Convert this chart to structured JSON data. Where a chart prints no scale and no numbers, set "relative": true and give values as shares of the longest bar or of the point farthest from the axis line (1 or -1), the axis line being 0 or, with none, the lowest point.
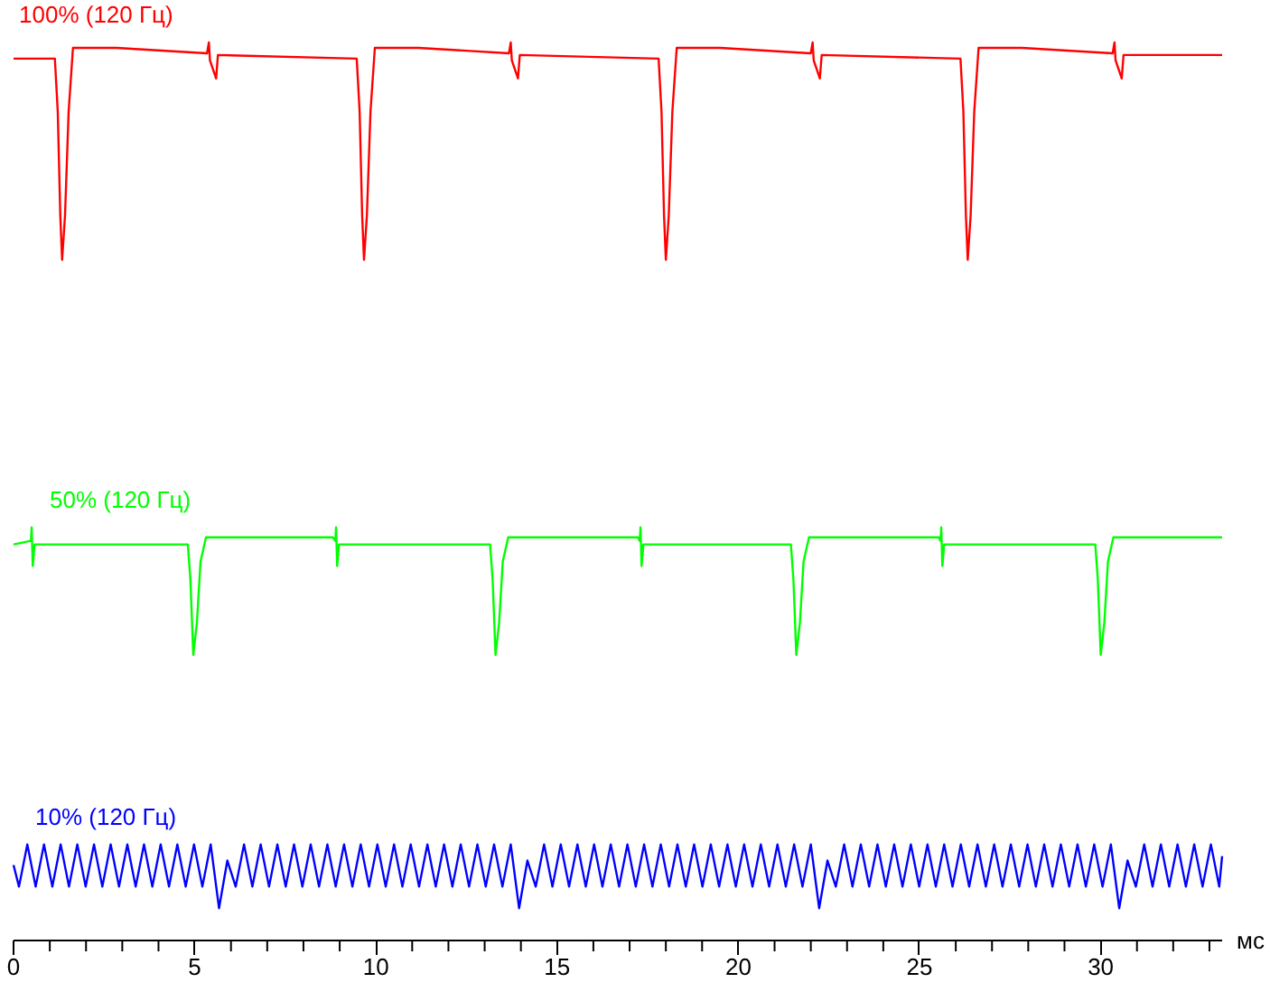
{
  "chart_data": {
    "type": "line",
    "relative": true,
    "xlabel": "мс",
    "xlim": [
      0,
      33.35
    ],
    "xticks": [
      0,
      5,
      10,
      15,
      20,
      25,
      30
    ],
    "grid": false,
    "marker": "none",
    "line_style": "solid",
    "series": [
      {
        "name": "100% (120 Гц)",
        "color": "#ff0000",
        "x": [
          0,
          1.14,
          1.22,
          1.29,
          1.34,
          1.42,
          1.52,
          1.64,
          2.84,
          5.34,
          5.39,
          5.42,
          5.59,
          5.64,
          9.47,
          9.55,
          9.62,
          9.67,
          9.75,
          9.85,
          9.97,
          11.17,
          13.67,
          13.72,
          13.75,
          13.92,
          13.97,
          17.8,
          17.88,
          17.95,
          18.0,
          18.08,
          18.18,
          18.3,
          19.5,
          22.0,
          22.05,
          22.08,
          22.25,
          22.3,
          26.13,
          26.21,
          26.28,
          26.33,
          26.41,
          26.51,
          26.63,
          27.83,
          30.33,
          30.38,
          30.41,
          30.58,
          30.63,
          33.35
        ],
        "values": [
          0.982,
          0.982,
          0.923,
          0.807,
          0.758,
          0.807,
          0.923,
          0.994,
          0.994,
          0.988,
          1.0,
          0.98,
          0.96,
          0.986,
          0.982,
          0.923,
          0.807,
          0.758,
          0.807,
          0.923,
          0.994,
          0.994,
          0.988,
          1.0,
          0.98,
          0.96,
          0.986,
          0.982,
          0.923,
          0.807,
          0.758,
          0.807,
          0.923,
          0.994,
          0.994,
          0.988,
          1.0,
          0.98,
          0.96,
          0.986,
          0.982,
          0.923,
          0.807,
          0.758,
          0.807,
          0.923,
          0.994,
          0.994,
          0.988,
          1.0,
          0.98,
          0.96,
          0.986,
          0.986
        ]
      },
      {
        "name": "50% (120 Гц)",
        "color": "#00ff00",
        "x": [
          0,
          0.48,
          0.5,
          0.53,
          0.58,
          4.81,
          4.88,
          4.96,
          5.06,
          5.16,
          5.31,
          8.81,
          8.88,
          8.9,
          8.93,
          8.98,
          13.15,
          13.22,
          13.3,
          13.4,
          13.5,
          13.65,
          17.23,
          17.28,
          17.3,
          17.33,
          17.38,
          21.45,
          21.52,
          21.6,
          21.7,
          21.8,
          21.95,
          25.53,
          25.58,
          25.6,
          25.63,
          25.68,
          29.85,
          29.92,
          30.0,
          30.1,
          30.2,
          30.35,
          33.35
        ],
        "values": [
          0.441,
          0.445,
          0.46,
          0.417,
          0.441,
          0.441,
          0.402,
          0.318,
          0.354,
          0.422,
          0.449,
          0.449,
          0.445,
          0.46,
          0.417,
          0.441,
          0.441,
          0.402,
          0.318,
          0.354,
          0.422,
          0.449,
          0.449,
          0.445,
          0.46,
          0.417,
          0.441,
          0.441,
          0.402,
          0.318,
          0.354,
          0.422,
          0.449,
          0.449,
          0.445,
          0.46,
          0.417,
          0.441,
          0.441,
          0.402,
          0.318,
          0.354,
          0.422,
          0.449,
          0.449
        ]
      },
      {
        "name": "10% (120 Гц)",
        "color": "#0000ff",
        "x": [
          0,
          0.15,
          0.38,
          0.61,
          0.84,
          1.07,
          1.3,
          1.53,
          1.76,
          1.99,
          2.22,
          2.45,
          2.68,
          2.91,
          3.14,
          3.37,
          3.6,
          3.83,
          4.06,
          4.29,
          4.52,
          4.75,
          4.98,
          5.21,
          5.44,
          5.67,
          5.9,
          6.13,
          6.36,
          6.59,
          6.82,
          7.05,
          7.28,
          7.51,
          7.74,
          7.97,
          8.2,
          8.43,
          8.66,
          8.89,
          9.12,
          9.35,
          9.58,
          9.81,
          10.04,
          10.27,
          10.5,
          10.73,
          10.96,
          11.19,
          11.42,
          11.65,
          11.88,
          12.11,
          12.34,
          12.57,
          12.8,
          13.03,
          13.26,
          13.49,
          13.72,
          13.95,
          14.18,
          14.41,
          14.64,
          14.87,
          15.1,
          15.33,
          15.56,
          15.79,
          16.02,
          16.25,
          16.48,
          16.71,
          16.94,
          17.17,
          17.4,
          17.63,
          17.86,
          18.09,
          18.32,
          18.55,
          18.78,
          19.01,
          19.24,
          19.47,
          19.7,
          19.93,
          20.16,
          20.39,
          20.62,
          20.85,
          21.08,
          21.31,
          21.54,
          21.77,
          22.0,
          22.23,
          22.46,
          22.69,
          22.92,
          23.15,
          23.38,
          23.61,
          23.84,
          24.07,
          24.3,
          24.53,
          24.76,
          24.99,
          25.22,
          25.45,
          25.68,
          25.91,
          26.14,
          26.37,
          26.6,
          26.83,
          27.06,
          27.29,
          27.52,
          27.75,
          27.98,
          28.21,
          28.44,
          28.67,
          28.9,
          29.13,
          29.36,
          29.59,
          29.82,
          30.05,
          30.28,
          30.51,
          30.74,
          30.97,
          31.2,
          31.43,
          31.66,
          31.89,
          32.12,
          32.35,
          32.58,
          32.81,
          33.04,
          33.27,
          33.35
        ],
        "values": [
          0.084,
          0.06,
          0.107,
          0.06,
          0.107,
          0.06,
          0.107,
          0.06,
          0.107,
          0.06,
          0.107,
          0.06,
          0.107,
          0.06,
          0.107,
          0.06,
          0.107,
          0.06,
          0.107,
          0.06,
          0.107,
          0.06,
          0.107,
          0.06,
          0.107,
          0.036,
          0.089,
          0.06,
          0.107,
          0.06,
          0.107,
          0.06,
          0.107,
          0.06,
          0.107,
          0.06,
          0.107,
          0.06,
          0.107,
          0.06,
          0.107,
          0.06,
          0.107,
          0.06,
          0.107,
          0.06,
          0.107,
          0.06,
          0.107,
          0.06,
          0.107,
          0.06,
          0.107,
          0.06,
          0.107,
          0.06,
          0.107,
          0.06,
          0.107,
          0.06,
          0.107,
          0.036,
          0.089,
          0.06,
          0.107,
          0.06,
          0.107,
          0.06,
          0.107,
          0.06,
          0.107,
          0.06,
          0.107,
          0.06,
          0.107,
          0.06,
          0.107,
          0.06,
          0.107,
          0.06,
          0.107,
          0.06,
          0.107,
          0.06,
          0.107,
          0.06,
          0.107,
          0.06,
          0.107,
          0.06,
          0.107,
          0.06,
          0.107,
          0.06,
          0.107,
          0.06,
          0.107,
          0.036,
          0.089,
          0.06,
          0.107,
          0.06,
          0.107,
          0.06,
          0.107,
          0.06,
          0.107,
          0.06,
          0.107,
          0.06,
          0.107,
          0.06,
          0.107,
          0.06,
          0.107,
          0.06,
          0.107,
          0.06,
          0.107,
          0.06,
          0.107,
          0.06,
          0.107,
          0.06,
          0.107,
          0.06,
          0.107,
          0.06,
          0.107,
          0.06,
          0.107,
          0.06,
          0.107,
          0.036,
          0.089,
          0.06,
          0.107,
          0.06,
          0.107,
          0.06,
          0.107,
          0.06,
          0.107,
          0.06,
          0.107,
          0.06,
          0.094
        ]
      }
    ]
  }
}
